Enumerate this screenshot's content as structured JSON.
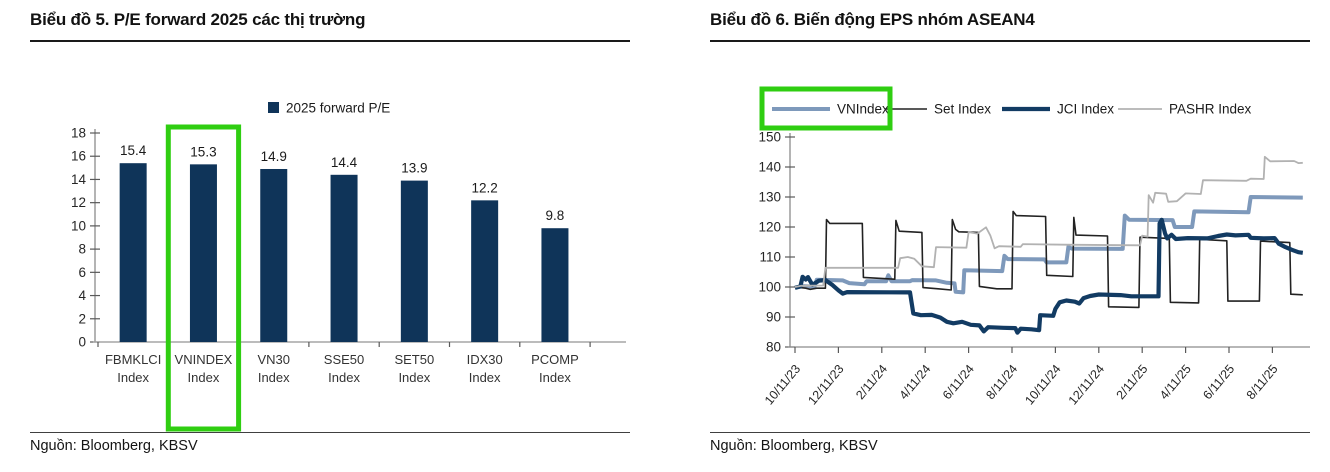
{
  "chart_data": [
    {
      "type": "bar",
      "title": "Biểu đồ 5. P/E forward 2025 các thị trường",
      "legend": [
        "2025 forward P/E"
      ],
      "categories": [
        "FBMKLCI Index",
        "VNINDEX Index",
        "VN30 Index",
        "SSE50 Index",
        "SET50 Index",
        "IDX30 Index",
        "PCOMP Index"
      ],
      "values": [
        15.4,
        15.3,
        14.9,
        14.4,
        13.9,
        12.2,
        9.8
      ],
      "xlabel": "",
      "ylabel": "",
      "ylim": [
        0,
        18
      ],
      "ytick_step": 2,
      "grid": false,
      "bar_color": "#0f3459",
      "highlighted_category": "VNINDEX Index",
      "highlight_color": "#2fce11",
      "source": "Nguồn: Bloomberg, KBSV"
    },
    {
      "type": "line",
      "title": "Biểu đồ 6. Biến động EPS nhóm ASEAN4",
      "x_tick_labels": [
        "10/11/23",
        "12/11/23",
        "2/11/24",
        "4/11/24",
        "6/11/24",
        "8/11/24",
        "10/11/24",
        "12/11/24",
        "2/11/25",
        "4/11/25",
        "6/11/25",
        "8/11/25"
      ],
      "x_unit": "months since 10/11/23, tick every 2 months",
      "x_range_months": [
        0,
        24
      ],
      "xlabel": "",
      "ylabel": "",
      "ylim": [
        80,
        150
      ],
      "ytick_step": 10,
      "grid": false,
      "legend_position": "top",
      "highlighted_series": "VNIndex",
      "highlight_color": "#2fce11",
      "source": "Nguồn: Bloomberg, KBSV",
      "series": [
        {
          "name": "VNIndex",
          "color": "#7e99bb",
          "width": 4,
          "points": [
            [
              0,
              99.8
            ],
            [
              0.4,
              100.3
            ],
            [
              0.9,
              100.1
            ],
            [
              1.0,
              102.4
            ],
            [
              2.2,
              102.2
            ],
            [
              2.5,
              101.3
            ],
            [
              3.2,
              100.9
            ],
            [
              3.3,
              101.9
            ],
            [
              4.2,
              101.9
            ],
            [
              4.3,
              103.9
            ],
            [
              4.45,
              101.9
            ],
            [
              5.3,
              101.9
            ],
            [
              5.4,
              102.3
            ],
            [
              6.5,
              102.2
            ],
            [
              7.0,
              101.4
            ],
            [
              7.35,
              101.2
            ],
            [
              7.4,
              98.4
            ],
            [
              7.75,
              98.2
            ],
            [
              7.8,
              105.6
            ],
            [
              9.55,
              105.3
            ],
            [
              9.65,
              110.4
            ],
            [
              9.8,
              109.3
            ],
            [
              11.5,
              109.2
            ],
            [
              11.6,
              108.2
            ],
            [
              12.5,
              108.2
            ],
            [
              12.6,
              113.4
            ],
            [
              12.75,
              112.8
            ],
            [
              15.1,
              112.7
            ],
            [
              15.2,
              123.8
            ],
            [
              15.4,
              122.4
            ],
            [
              17.4,
              122.3
            ],
            [
              17.5,
              120.0
            ],
            [
              18.3,
              120.0
            ],
            [
              18.4,
              125.2
            ],
            [
              20.9,
              124.9
            ],
            [
              21.0,
              130.0
            ],
            [
              23.4,
              129.8
            ]
          ]
        },
        {
          "name": "Set Index",
          "color": "#222222",
          "width": 1.6,
          "points": [
            [
              0,
              100
            ],
            [
              0.5,
              99.6
            ],
            [
              0.7,
              99.2
            ],
            [
              1.0,
              99.6
            ],
            [
              1.4,
              99.6
            ],
            [
              1.45,
              122.5
            ],
            [
              1.6,
              121.2
            ],
            [
              3.1,
              121.2
            ],
            [
              3.15,
              103.2
            ],
            [
              4.6,
              102.6
            ],
            [
              4.65,
              122.2
            ],
            [
              4.8,
              118.6
            ],
            [
              5.85,
              118.2
            ],
            [
              5.9,
              99.8
            ],
            [
              6.6,
              99.4
            ],
            [
              7.2,
              99.0
            ],
            [
              7.25,
              122.5
            ],
            [
              7.4,
              119.2
            ],
            [
              7.55,
              118.4
            ],
            [
              8.45,
              118.2
            ],
            [
              8.5,
              100.2
            ],
            [
              9.3,
              99.4
            ],
            [
              10.0,
              99.4
            ],
            [
              10.05,
              125.2
            ],
            [
              10.2,
              123.8
            ],
            [
              11.55,
              123.5
            ],
            [
              11.6,
              103.9
            ],
            [
              12.8,
              103.5
            ],
            [
              12.85,
              123.2
            ],
            [
              12.95,
              117.3
            ],
            [
              14.4,
              117.0
            ],
            [
              14.45,
              93.4
            ],
            [
              15.85,
              93.2
            ],
            [
              15.9,
              116.6
            ],
            [
              17.25,
              116.2
            ],
            [
              17.3,
              94.9
            ],
            [
              18.6,
              94.7
            ],
            [
              18.65,
              115.9
            ],
            [
              19.9,
              115.4
            ],
            [
              19.95,
              95.3
            ],
            [
              21.4,
              95.3
            ],
            [
              21.45,
              115.3
            ],
            [
              22.8,
              114.8
            ],
            [
              22.85,
              97.6
            ],
            [
              23.4,
              97.4
            ]
          ]
        },
        {
          "name": "JCI Index",
          "color": "#123b63",
          "width": 4.2,
          "points": [
            [
              0,
              99.7
            ],
            [
              0.25,
              100.2
            ],
            [
              0.35,
              103.4
            ],
            [
              0.5,
              102.5
            ],
            [
              0.6,
              103.3
            ],
            [
              0.8,
              100.7
            ],
            [
              1.1,
              102.1
            ],
            [
              1.4,
              102.3
            ],
            [
              1.7,
              100.8
            ],
            [
              2.0,
              98.9
            ],
            [
              2.2,
              97.8
            ],
            [
              2.4,
              98.3
            ],
            [
              5.3,
              98.2
            ],
            [
              5.45,
              91.2
            ],
            [
              5.8,
              90.6
            ],
            [
              6.3,
              90.7
            ],
            [
              6.7,
              89.8
            ],
            [
              7.0,
              88.4
            ],
            [
              7.3,
              87.9
            ],
            [
              7.7,
              88.4
            ],
            [
              8.1,
              87.4
            ],
            [
              8.5,
              87.2
            ],
            [
              8.7,
              85.2
            ],
            [
              8.9,
              86.6
            ],
            [
              9.6,
              86.4
            ],
            [
              10.15,
              86.3
            ],
            [
              10.25,
              84.8
            ],
            [
              10.4,
              86.1
            ],
            [
              10.9,
              85.9
            ],
            [
              11.25,
              85.6
            ],
            [
              11.3,
              90.6
            ],
            [
              11.9,
              90.4
            ],
            [
              12.0,
              92.7
            ],
            [
              12.2,
              94.9
            ],
            [
              12.5,
              95.5
            ],
            [
              12.9,
              95.1
            ],
            [
              13.1,
              94.5
            ],
            [
              13.3,
              96.3
            ],
            [
              13.6,
              97.0
            ],
            [
              14.0,
              97.5
            ],
            [
              15.0,
              97.3
            ],
            [
              15.5,
              96.9
            ],
            [
              16.75,
              96.9
            ],
            [
              16.8,
              121.2
            ],
            [
              16.9,
              122.4
            ],
            [
              17.05,
              117.9
            ],
            [
              17.15,
              116.2
            ],
            [
              17.35,
              117.4
            ],
            [
              17.55,
              116.0
            ],
            [
              18.1,
              116.3
            ],
            [
              19.0,
              116.2
            ],
            [
              19.5,
              117.0
            ],
            [
              19.9,
              117.5
            ],
            [
              20.3,
              117.2
            ],
            [
              20.9,
              117.4
            ],
            [
              21.0,
              116.4
            ],
            [
              21.6,
              116.2
            ],
            [
              22.1,
              116.3
            ],
            [
              22.3,
              114.4
            ],
            [
              22.6,
              113.3
            ],
            [
              22.9,
              112.4
            ],
            [
              23.2,
              111.6
            ],
            [
              23.4,
              111.4
            ]
          ]
        },
        {
          "name": "PASHR Index",
          "color": "#b2b2b2",
          "width": 1.8,
          "points": [
            [
              0,
              100.0
            ],
            [
              0.3,
              100.4
            ],
            [
              1.3,
              100.5
            ],
            [
              1.4,
              106.4
            ],
            [
              4.75,
              106.4
            ],
            [
              4.85,
              109.6
            ],
            [
              5.2,
              110.0
            ],
            [
              5.5,
              109.4
            ],
            [
              5.85,
              106.9
            ],
            [
              6.4,
              106.6
            ],
            [
              6.5,
              113.3
            ],
            [
              7.9,
              113.1
            ],
            [
              8.0,
              118.3
            ],
            [
              8.4,
              117.8
            ],
            [
              8.8,
              119.9
            ],
            [
              9.0,
              117.2
            ],
            [
              9.2,
              112.9
            ],
            [
              9.4,
              113.6
            ],
            [
              10.4,
              113.4
            ],
            [
              10.5,
              114.3
            ],
            [
              12.4,
              114.1
            ],
            [
              15.9,
              113.9
            ],
            [
              16.0,
              117.1
            ],
            [
              16.25,
              116.8
            ],
            [
              16.3,
              130.6
            ],
            [
              16.5,
              128.1
            ],
            [
              16.6,
              131.4
            ],
            [
              17.1,
              131.1
            ],
            [
              17.2,
              128.4
            ],
            [
              17.6,
              128.6
            ],
            [
              18.0,
              131.2
            ],
            [
              18.7,
              131.0
            ],
            [
              18.8,
              135.6
            ],
            [
              20.8,
              135.4
            ],
            [
              21.0,
              136.1
            ],
            [
              21.6,
              136.0
            ],
            [
              21.65,
              143.4
            ],
            [
              21.9,
              141.9
            ],
            [
              23.0,
              142.0
            ],
            [
              23.2,
              141.3
            ],
            [
              23.4,
              141.4
            ]
          ]
        }
      ]
    }
  ]
}
